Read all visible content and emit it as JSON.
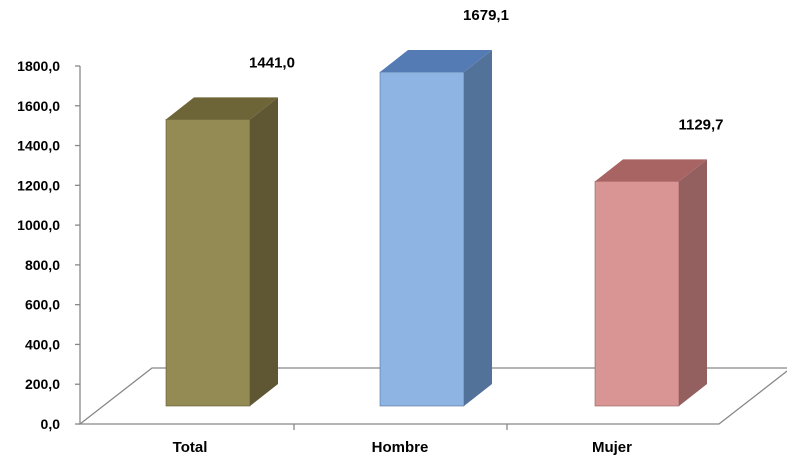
{
  "chart_data": {
    "type": "bar",
    "categories": [
      "Total",
      "Hombre",
      "Mujer"
    ],
    "values": [
      1441.0,
      1679.1,
      1129.7
    ],
    "data_labels": [
      "1441,0",
      "1679,1",
      "1129,7"
    ],
    "title": "",
    "xlabel": "",
    "ylabel": "",
    "ylim": [
      0,
      1800
    ],
    "y_ticks": [
      "0,0",
      "200,0",
      "400,0",
      "600,0",
      "800,0",
      "1000,0",
      "1200,0",
      "1400,0",
      "1600,0",
      "1800,0"
    ],
    "grid": false,
    "legend": "none",
    "three_d": true,
    "colors": {
      "front": [
        "#948a54",
        "#8db4e2",
        "#d99594"
      ],
      "side": [
        "#5f5733",
        "#53729a",
        "#93605f"
      ],
      "top": [
        "#6d6537",
        "#557bb5",
        "#a86463"
      ]
    }
  }
}
